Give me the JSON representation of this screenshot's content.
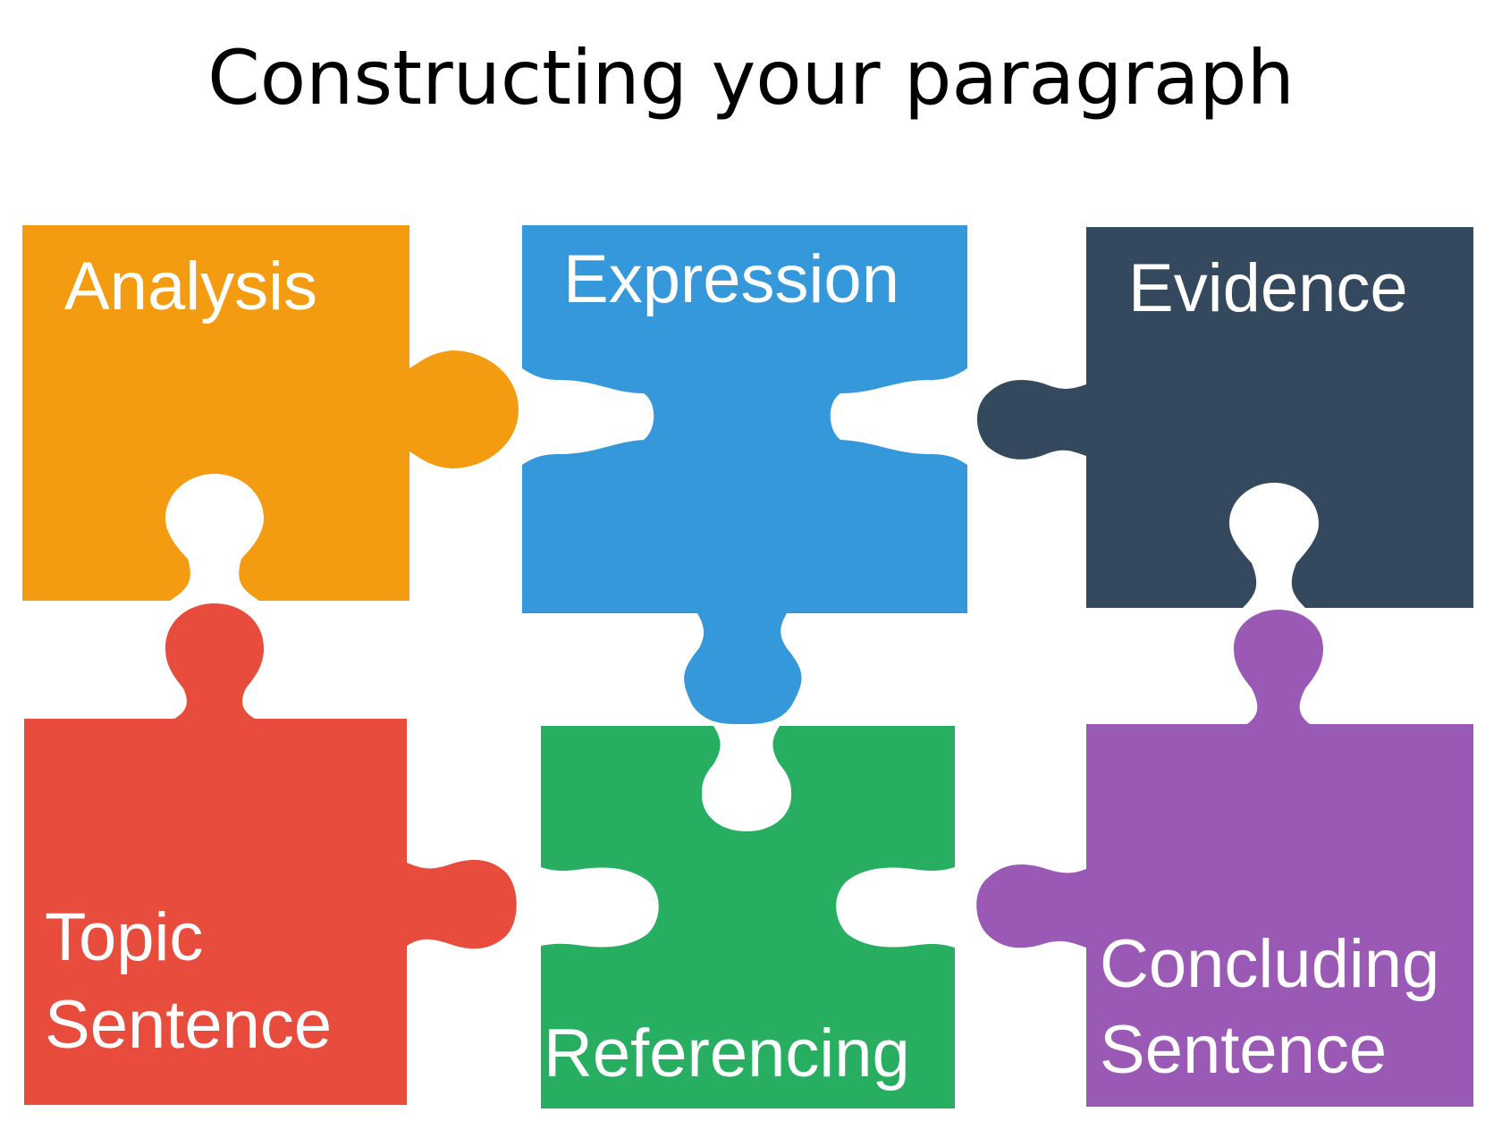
{
  "title": "Constructing your paragraph",
  "pieces": {
    "analysis": {
      "label": "Analysis",
      "color": "#F39C12"
    },
    "expression": {
      "label": "Expression",
      "color": "#3498DB"
    },
    "evidence": {
      "label": "Evidence",
      "color": "#34495E"
    },
    "topic_sentence": {
      "label_line1": "Topic",
      "label_line2": "Sentence",
      "color": "#E74C3C"
    },
    "referencing": {
      "label": "Referencing",
      "color": "#27AE60"
    },
    "concluding_sentence": {
      "label_line1": "Concluding",
      "label_line2": "Sentence",
      "color": "#9B59B6"
    }
  }
}
